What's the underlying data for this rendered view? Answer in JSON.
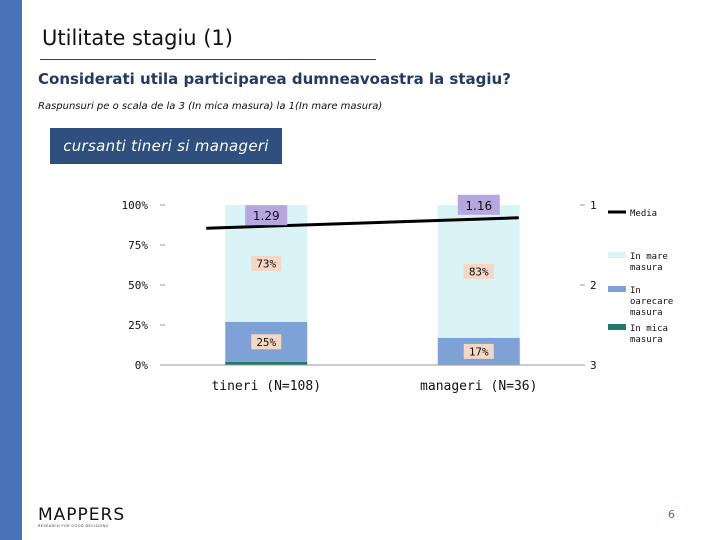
{
  "slide": {
    "title": "Utilitate stagiu (1)",
    "question": "Considerati utila participarea dumneavoastra la stagiu?",
    "scale_note": "Raspunsuri pe o scala de la 3 (In mica masura) la 1(In mare masura)",
    "group_label": "cursanti tineri si manageri",
    "page_number": "6",
    "logo": {
      "name": "MAPPERS",
      "tagline": "RESEARCH FOR GOOD DECISIONS"
    },
    "colors": {
      "sidebar": "#4a72b8",
      "group_box": "#2f4f7e",
      "question_text": "#223a66"
    }
  },
  "chart_data": {
    "type": "bar",
    "stacked": true,
    "categories": [
      "tineri (N=108)",
      "manageri (N=36)"
    ],
    "series": [
      {
        "name": "In mica masura",
        "values": [
          2,
          0
        ],
        "color": "#1f7a6b"
      },
      {
        "name": "In oarecare masura",
        "values": [
          25,
          17
        ],
        "color": "#7ea1d6"
      },
      {
        "name": "In mare masura",
        "values": [
          73,
          83
        ],
        "color": "#d9f3f7"
      }
    ],
    "bar_labels": [
      {
        "category": "tineri (N=108)",
        "series": "In oarecare masura",
        "label": "25%"
      },
      {
        "category": "tineri (N=108)",
        "series": "In mare masura",
        "label": "73%"
      },
      {
        "category": "manageri (N=36)",
        "series": "In oarecare masura",
        "label": "17%"
      },
      {
        "category": "manageri (N=36)",
        "series": "In mare masura",
        "label": "83%"
      }
    ],
    "line": {
      "name": "Media",
      "values": [
        1.29,
        1.16
      ],
      "labels": [
        "1.29",
        "1.16"
      ],
      "color": "#000000",
      "axis": "right"
    },
    "y_left": {
      "ticks": [
        "0%",
        "25%",
        "50%",
        "75%",
        "100%"
      ],
      "ylim": [
        0,
        100
      ]
    },
    "y_right": {
      "ticks": [
        "1",
        "2",
        "3"
      ],
      "ylim": [
        1,
        3
      ],
      "reversed": true
    },
    "legend": {
      "position": "right",
      "items": [
        "Media",
        "In mare masura",
        "In oarecare masura",
        "In mica masura"
      ]
    },
    "grid": false
  }
}
